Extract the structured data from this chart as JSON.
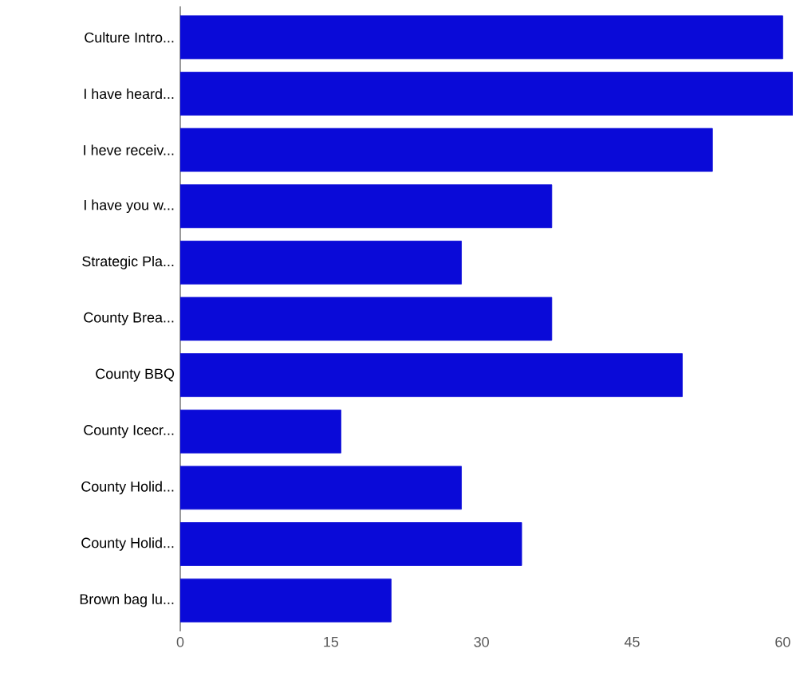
{
  "chart_data": {
    "type": "bar",
    "orientation": "horizontal",
    "color": "#0a0ad8",
    "categories": [
      "Culture Intro...",
      "I have heard...",
      "I heve receiv...",
      "I have you w...",
      "Strategic Pla...",
      "County Brea...",
      "County BBQ",
      "County Icecr...",
      "County Holid...",
      "County Holid...",
      "Brown bag lu..."
    ],
    "values": [
      60,
      61,
      53,
      37,
      28,
      37,
      50,
      16,
      28,
      34,
      21
    ],
    "xlim": [
      0,
      61
    ],
    "xticks": [
      0,
      15,
      30,
      45,
      60
    ]
  }
}
